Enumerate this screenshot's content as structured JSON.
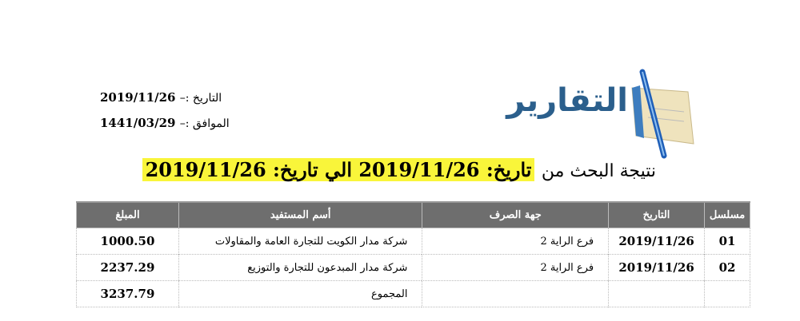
{
  "header": {
    "date_label": "التاريخ :–",
    "date_value": "2019/11/26",
    "hijri_label": "الموافق :–",
    "hijri_value": "1441/03/29",
    "logo_text": "التقارير"
  },
  "title": {
    "prefix": "نتيجة البحث من",
    "from_label": "تاريخ:",
    "from_date": "2019/11/26",
    "to_label": "الي تاريخ:",
    "to_date": "2019/11/26"
  },
  "table": {
    "columns": [
      "مسلسل",
      "التاريخ",
      "جهة الصرف",
      "أسم المستفيد",
      "المبلغ"
    ],
    "rows": [
      [
        "01",
        "2019/11/26",
        "فرع الراية 2",
        "شركة مدار الكويت للتجارة العامة والمقاولات",
        "1000.50"
      ],
      [
        "02",
        "2019/11/26",
        "فرع الراية 2",
        "شركة مدار المبدعون للتجارة والتوزيع",
        "2237.29"
      ]
    ],
    "total_label": "المجموع",
    "total_value": "3237.79"
  },
  "colors": {
    "header_bg": "#6e6e6e",
    "highlight": "#f9f53a",
    "logo": "#2b5f8c"
  }
}
